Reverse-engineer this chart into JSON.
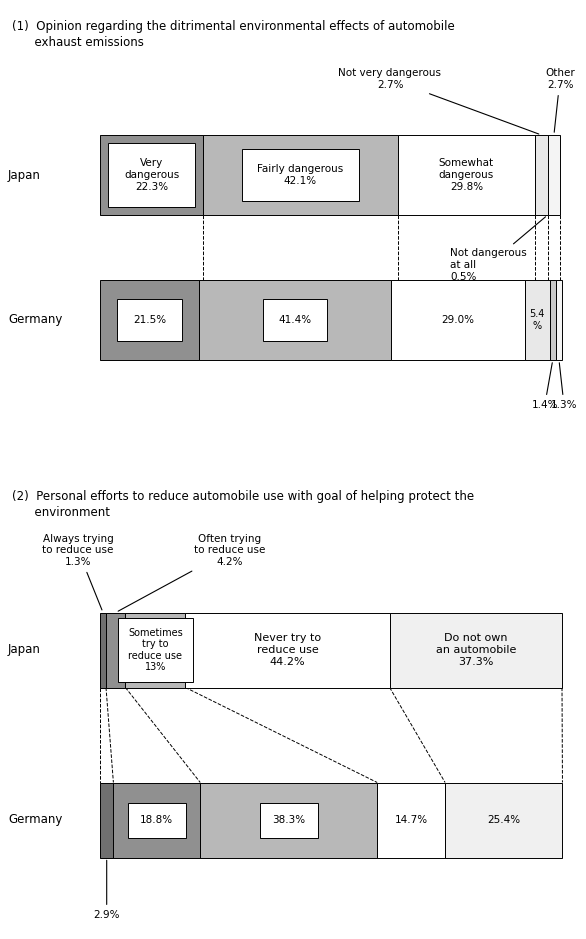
{
  "fig_w": 5.86,
  "fig_h": 9.39,
  "chart1": {
    "title_line1": "(1)  Opinion regarding the ditrimental environmental effects of automobile",
    "title_line2": "      exhaust emissions",
    "japan_label": "Japan",
    "germany_label": "Germany",
    "japan_segs": [
      {
        "v": 22.3,
        "color": "#909090"
      },
      {
        "v": 42.1,
        "color": "#b8b8b8"
      },
      {
        "v": 29.8,
        "color": "#ffffff"
      },
      {
        "v": 2.7,
        "color": "#e8e8e8"
      },
      {
        "v": 2.7,
        "color": "#f4f4f4"
      }
    ],
    "germany_segs": [
      {
        "v": 21.5,
        "color": "#909090"
      },
      {
        "v": 41.4,
        "color": "#b8b8b8"
      },
      {
        "v": 29.0,
        "color": "#ffffff"
      },
      {
        "v": 5.4,
        "color": "#e8e8e8"
      },
      {
        "v": 1.4,
        "color": "#c8c8c8"
      },
      {
        "v": 1.3,
        "color": "#f4f4f4"
      }
    ]
  },
  "chart2": {
    "title_line1": "(2)  Personal efforts to reduce automobile use with goal of helping protect the",
    "title_line2": "      environment",
    "japan_label": "Japan",
    "germany_label": "Germany",
    "japan_segs": [
      {
        "v": 1.3,
        "color": "#707070"
      },
      {
        "v": 4.2,
        "color": "#909090"
      },
      {
        "v": 13.0,
        "color": "#b8b8b8"
      },
      {
        "v": 44.2,
        "color": "#ffffff"
      },
      {
        "v": 37.3,
        "color": "#f0f0f0"
      }
    ],
    "germany_segs": [
      {
        "v": 2.9,
        "color": "#707070"
      },
      {
        "v": 18.8,
        "color": "#909090"
      },
      {
        "v": 38.3,
        "color": "#b8b8b8"
      },
      {
        "v": 14.7,
        "color": "#ffffff"
      },
      {
        "v": 25.4,
        "color": "#f0f0f0"
      }
    ]
  }
}
